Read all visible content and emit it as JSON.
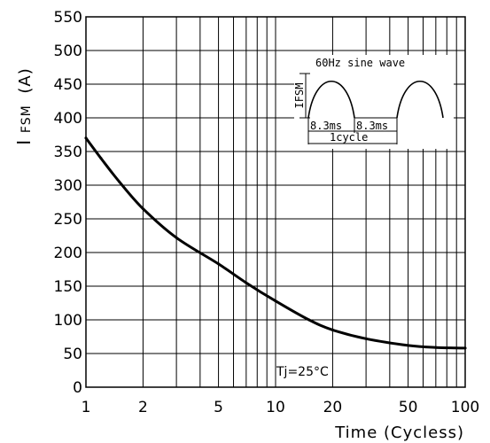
{
  "chart_data": {
    "type": "line",
    "title": "",
    "ylabel_main": "I",
    "ylabel_sub": "FSM",
    "ylabel_unit": "(A)",
    "xlabel": "Time (Cycless)",
    "x_scale": "log",
    "xlim": [
      1,
      100
    ],
    "ylim": [
      0,
      550
    ],
    "grid": true,
    "x_ticks": [
      1,
      2,
      5,
      10,
      20,
      50,
      100
    ],
    "x_tick_labels": [
      "1",
      "2",
      "5",
      "10",
      "20",
      "50",
      "100"
    ],
    "y_ticks": [
      0,
      50,
      100,
      150,
      200,
      250,
      300,
      350,
      400,
      450,
      500,
      550
    ],
    "y_tick_labels": [
      "0",
      "50",
      "100",
      "150",
      "200",
      "250",
      "300",
      "350",
      "400",
      "450",
      "500",
      "550"
    ],
    "series": [
      {
        "x": [
          1,
          1.2,
          1.5,
          2,
          3,
          5,
          7,
          10,
          15,
          20,
          30,
          50,
          70,
          100
        ],
        "y": [
          370,
          340,
          305,
          265,
          222,
          183,
          155,
          128,
          100,
          85,
          72,
          62,
          59,
          58
        ]
      }
    ],
    "annotation": "Tj=25°C",
    "inset": {
      "title": "60Hz sine wave",
      "ylabel": "IFSM",
      "half_cycle_1": "8.3ms",
      "half_cycle_2": "8.3ms",
      "cycle_label": "1cycle"
    },
    "colors": {
      "line": "#000000",
      "grid": "#000000",
      "background": "#ffffff"
    }
  }
}
